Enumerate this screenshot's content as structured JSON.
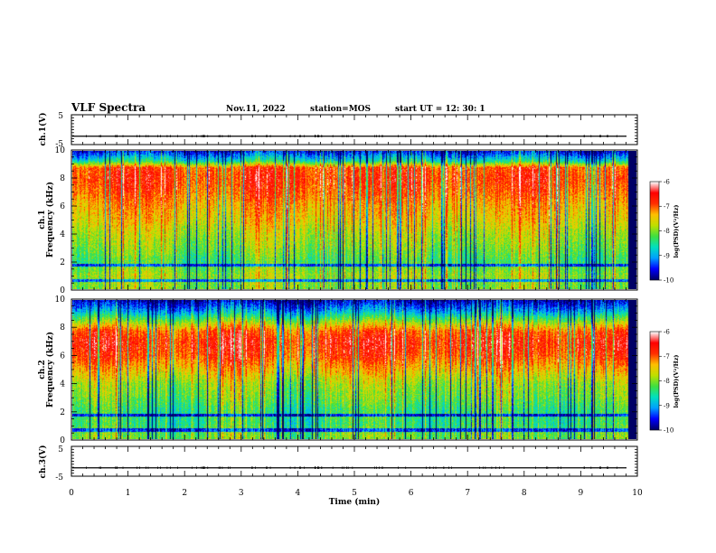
{
  "header": {
    "title": "VLF Spectra",
    "date": "Nov.11, 2022",
    "station": "station=MOS",
    "start_ut": "start  UT =    12: 30: 1"
  },
  "colors": {
    "scale": [
      "#000066",
      "#0000ff",
      "#00a0ff",
      "#00e0c0",
      "#40e040",
      "#c0e000",
      "#ffc000",
      "#ff3000",
      "#ff0000",
      "#ffffff"
    ]
  },
  "chart_data": [
    {
      "type": "line",
      "name": "ch1-waveform",
      "ylabel": "ch.1(V)",
      "ylim": [
        -5,
        5
      ],
      "y_ticks": [
        "5",
        "-5"
      ],
      "xlim": [
        0,
        10
      ],
      "baseline_value": -2.2,
      "grid": false
    },
    {
      "type": "heatmap",
      "name": "ch1-spectrogram",
      "ylabel": "ch.1\nFrequency (kHz)",
      "ylabel_line1": "ch.1",
      "ylabel_line2": "Frequency (kHz)",
      "ylim": [
        0,
        10
      ],
      "y_ticks": [
        "0",
        "2",
        "4",
        "6",
        "8",
        "10"
      ],
      "xlim": [
        0,
        10
      ],
      "colorbar": {
        "label": "log(PSD)(V²/Hz)",
        "range": [
          -10,
          -6
        ],
        "ticks": [
          "-6",
          "-7",
          "-8",
          "-9",
          "-10"
        ]
      },
      "intensity_profile_khz": [
        [
          0.3,
          -8.0
        ],
        [
          1.0,
          -7.9
        ],
        [
          2.0,
          -8.3
        ],
        [
          3.0,
          -8.0
        ],
        [
          4.0,
          -7.8
        ],
        [
          5.0,
          -7.5
        ],
        [
          6.0,
          -7.3
        ],
        [
          7.0,
          -7.0
        ],
        [
          8.0,
          -6.8
        ],
        [
          8.8,
          -6.9
        ],
        [
          9.3,
          -8.6
        ],
        [
          10.0,
          -9.6
        ]
      ]
    },
    {
      "type": "heatmap",
      "name": "ch2-spectrogram",
      "ylabel": "ch.2\nFrequency (kHz)",
      "ylabel_line1": "ch.2",
      "ylabel_line2": "Frequency (kHz)",
      "ylim": [
        0,
        10
      ],
      "y_ticks": [
        "0",
        "2",
        "4",
        "6",
        "8",
        "10"
      ],
      "xlim": [
        0,
        10
      ],
      "colorbar": {
        "label": "log(PSD)(V²/Hz)",
        "range": [
          -10,
          -6
        ],
        "ticks": [
          "-6",
          "-7",
          "-8",
          "-9",
          "-10"
        ]
      },
      "intensity_profile_khz": [
        [
          0.3,
          -8.1
        ],
        [
          1.0,
          -8.4
        ],
        [
          2.0,
          -8.4
        ],
        [
          3.0,
          -8.1
        ],
        [
          4.0,
          -7.9
        ],
        [
          5.0,
          -7.4
        ],
        [
          6.0,
          -6.9
        ],
        [
          7.0,
          -6.7
        ],
        [
          7.8,
          -7.0
        ],
        [
          8.5,
          -8.0
        ],
        [
          9.2,
          -9.0
        ],
        [
          10.0,
          -9.8
        ]
      ]
    },
    {
      "type": "line",
      "name": "ch3-waveform",
      "ylabel": "ch.3(V)",
      "ylim": [
        -5,
        5
      ],
      "y_ticks": [
        "5",
        "-5"
      ],
      "xlim": [
        0,
        10
      ],
      "baseline_value": -2.2,
      "grid": false
    }
  ],
  "xaxis": {
    "label": "Time  (min)",
    "ticks": [
      "0",
      "1",
      "2",
      "3",
      "4",
      "5",
      "6",
      "7",
      "8",
      "9",
      "10"
    ],
    "range": [
      0,
      10
    ]
  }
}
